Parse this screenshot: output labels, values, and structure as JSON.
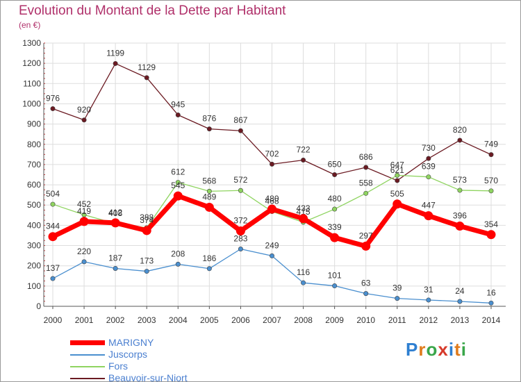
{
  "title": "Evolution du Montant de la Dette par Habitant",
  "subtitle": "(en €)",
  "logo": {
    "text": "Proxiti",
    "letter_colors": [
      "#2e7fd1",
      "#e07b1c",
      "#3aa64a",
      "#d63a2b",
      "#2e7fd1",
      "#e07b1c",
      "#3aa64a"
    ]
  },
  "chart_data": {
    "type": "line",
    "categories": [
      "2000",
      "2001",
      "2002",
      "2003",
      "2004",
      "2005",
      "2006",
      "2007",
      "2008",
      "2009",
      "2010",
      "2011",
      "2012",
      "2013",
      "2014"
    ],
    "ylim": [
      0,
      1300
    ],
    "yticks": [
      0,
      100,
      200,
      300,
      400,
      500,
      600,
      700,
      800,
      900,
      1000,
      1100,
      1200,
      1300
    ],
    "grid": true,
    "legend_position": "bottom-left",
    "series": [
      {
        "name": "Beauvoir-sur-Niort",
        "color": "#6b1a22",
        "values": [
          976,
          920,
          1199,
          1129,
          945,
          876,
          867,
          702,
          722,
          650,
          686,
          621,
          730,
          820,
          749
        ]
      },
      {
        "name": "Fors",
        "color": "#8fd460",
        "values": [
          504,
          452,
          408,
          388,
          612,
          568,
          572,
          468,
          415,
          480,
          558,
          647,
          639,
          573,
          570
        ]
      },
      {
        "name": "Juscorps",
        "color": "#4a8fcf",
        "values": [
          137,
          220,
          187,
          173,
          208,
          186,
          283,
          249,
          116,
          101,
          63,
          39,
          31,
          24,
          16
        ]
      },
      {
        "name": "MARIGNY",
        "color": "#ff0000",
        "values": [
          344,
          419,
          412,
          374,
          545,
          489,
          372,
          480,
          433,
          339,
          297,
          505,
          447,
          396,
          354
        ]
      }
    ],
    "legend": [
      {
        "name": "MARIGNY",
        "color": "#ff0000",
        "label_color": "#4a7fd0"
      },
      {
        "name": "Juscorps",
        "color": "#4a8fcf",
        "label_color": "#4a7fd0"
      },
      {
        "name": "Fors",
        "color": "#8fd460",
        "label_color": "#4a7fd0"
      },
      {
        "name": "Beauvoir-sur-Niort",
        "color": "#6b1a22",
        "label_color": "#4a7fd0"
      }
    ]
  }
}
